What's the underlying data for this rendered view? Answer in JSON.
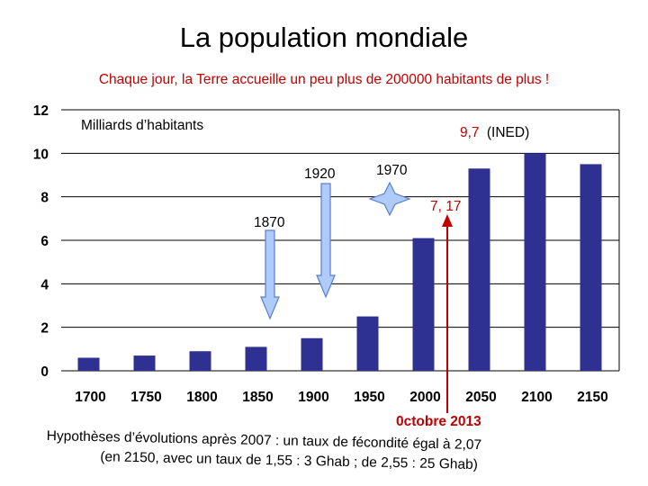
{
  "title": "La population mondiale",
  "subtitle": "Chaque jour, la Terre accueille un peu plus de 200000 habitants de plus !",
  "footnote": {
    "line1": "Hypothèses d’évolutions après 2007 : un taux de fécondité égal à 2,07",
    "line2": "(en 2150, avec un taux de 1,55 : 3 Ghab ; de 2,55 : 25 Ghab)"
  },
  "colors": {
    "bar": "#2e3192",
    "accent": "#c00000",
    "arrow_fill": "#aecbfa",
    "arrow_stroke": "#5b7ec9"
  },
  "chart_data": {
    "type": "bar",
    "ylabel": "Milliards d’habitants",
    "ylim": [
      0,
      12
    ],
    "yticks": [
      0,
      2,
      4,
      6,
      8,
      10,
      12
    ],
    "categories": [
      "1700",
      "1750",
      "1800",
      "1850",
      "1900",
      "1950",
      "2000",
      "2050",
      "2100",
      "2150"
    ],
    "values": [
      0.6,
      0.7,
      0.9,
      1.1,
      1.5,
      2.5,
      6.1,
      9.3,
      10.0,
      9.5
    ],
    "annotations": {
      "projection_value": "9,7",
      "projection_source": "(INED)",
      "current_value": "7, 17",
      "current_date": "0ctobre 2013",
      "label_1870": "1870",
      "label_1920": "1920",
      "label_1970": "1970"
    }
  }
}
